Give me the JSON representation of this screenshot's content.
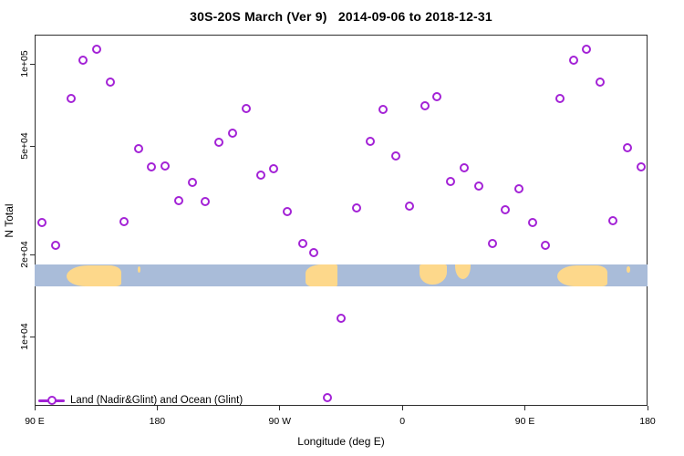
{
  "title": "30S-20S March (Ver 9)   2014-09-06 to 2018-12-31",
  "colors": {
    "marker": "#a322d6",
    "ocean": "#a9bcd9",
    "land": "#fdd88b",
    "axis": "#2e2e2e"
  },
  "legend": {
    "label": "Land (Nadir&Glint) and Ocean (Glint)"
  },
  "chart_data": {
    "type": "scatter",
    "title": "30S-20S March (Ver 9)   2014-09-06 to 2018-12-31",
    "xlabel": "Longitude (deg E)",
    "ylabel": "N Total",
    "legend_entries": [
      "Land (Nadir&Glint) and Ocean (Glint)"
    ],
    "x_axis": {
      "note": "longitude axis wraps: 90E eastward to 180 (values 90..540 deg)",
      "range_deg": [
        90,
        540
      ],
      "ticks": [
        {
          "deg": 90,
          "label": "90 E"
        },
        {
          "deg": 180,
          "label": "180"
        },
        {
          "deg": 270,
          "label": "90 W"
        },
        {
          "deg": 360,
          "label": "0"
        },
        {
          "deg": 450,
          "label": "90 E"
        },
        {
          "deg": 540,
          "label": "180"
        }
      ]
    },
    "y_axis": {
      "scale": "log",
      "range": [
        5570,
        127900
      ],
      "ticks": [
        {
          "value": 10000,
          "label": "1e+04"
        },
        {
          "value": 20000,
          "label": "2e+04"
        },
        {
          "value": 50000,
          "label": "5e+04"
        },
        {
          "value": 100000,
          "label": "1e+05"
        }
      ]
    },
    "series": [
      {
        "name": "Land (Nadir&Glint) and Ocean (Glint)",
        "marker": "open-circle",
        "points_deg_n": [
          [
            135.5,
            113000
          ],
          [
            125.5,
            103000
          ],
          [
            145.6,
            85700
          ],
          [
            116.8,
            74600
          ],
          [
            166.3,
            48900
          ],
          [
            225.3,
            51600
          ],
          [
            235.3,
            55700
          ],
          [
            245.4,
            68600
          ],
          [
            345.8,
            68000
          ],
          [
            376.6,
            70200
          ],
          [
            385.3,
            75700
          ],
          [
            336.4,
            52000
          ],
          [
            495.1,
            113000
          ],
          [
            485.8,
            103000
          ],
          [
            505.2,
            85700
          ],
          [
            475.7,
            74600
          ],
          [
            525.3,
            49200
          ],
          [
            175.7,
            41900
          ],
          [
            185.8,
            42200
          ],
          [
            205.8,
            36700
          ],
          [
            195.8,
            31500
          ],
          [
            215.2,
            31200
          ],
          [
            95.4,
            26200
          ],
          [
            155.6,
            26400
          ],
          [
            105.4,
            21600
          ],
          [
            355.2,
            46000
          ],
          [
            265.4,
            41300
          ],
          [
            256.1,
            39100
          ],
          [
            275.5,
            28700
          ],
          [
            326.4,
            29600
          ],
          [
            365.2,
            30100
          ],
          [
            286.9,
            21900
          ],
          [
            294.9,
            20300
          ],
          [
            405.4,
            41600
          ],
          [
            395.3,
            37000
          ],
          [
            416.1,
            35600
          ],
          [
            445.6,
            34800
          ],
          [
            435.5,
            29100
          ],
          [
            455.6,
            26200
          ],
          [
            514.6,
            26600
          ],
          [
            426.2,
            21900
          ],
          [
            465.0,
            21600
          ],
          [
            535.3,
            41900
          ],
          [
            315.0,
            11700
          ],
          [
            305.0,
            5970
          ]
        ]
      }
    ],
    "map_band": {
      "description": "land/ocean strip drawn across plot",
      "n_top": 18400,
      "n_bottom": 15300,
      "land_regions": [
        {
          "name": "australia",
          "deg_start": 113.4,
          "deg_end": 153.5,
          "shape": "blob"
        },
        {
          "name": "new-caledonia",
          "deg_start": 165.5,
          "deg_end": 168.0,
          "shape": "speck"
        },
        {
          "name": "south-america",
          "deg_start": 288.6,
          "deg_end": 312.5,
          "shape": "slant"
        },
        {
          "name": "africa",
          "deg_start": 372.5,
          "deg_end": 393.0,
          "shape": "taper"
        },
        {
          "name": "madagascar",
          "deg_start": 399.0,
          "deg_end": 410.0,
          "shape": "tri"
        },
        {
          "name": "australia-2",
          "deg_start": 473.9,
          "deg_end": 510.6,
          "shape": "blob"
        },
        {
          "name": "fiji",
          "deg_start": 524.5,
          "deg_end": 527.5,
          "shape": "speck"
        }
      ]
    },
    "layout": {
      "grid": false,
      "legend_position": "bottom-left-inside"
    }
  }
}
